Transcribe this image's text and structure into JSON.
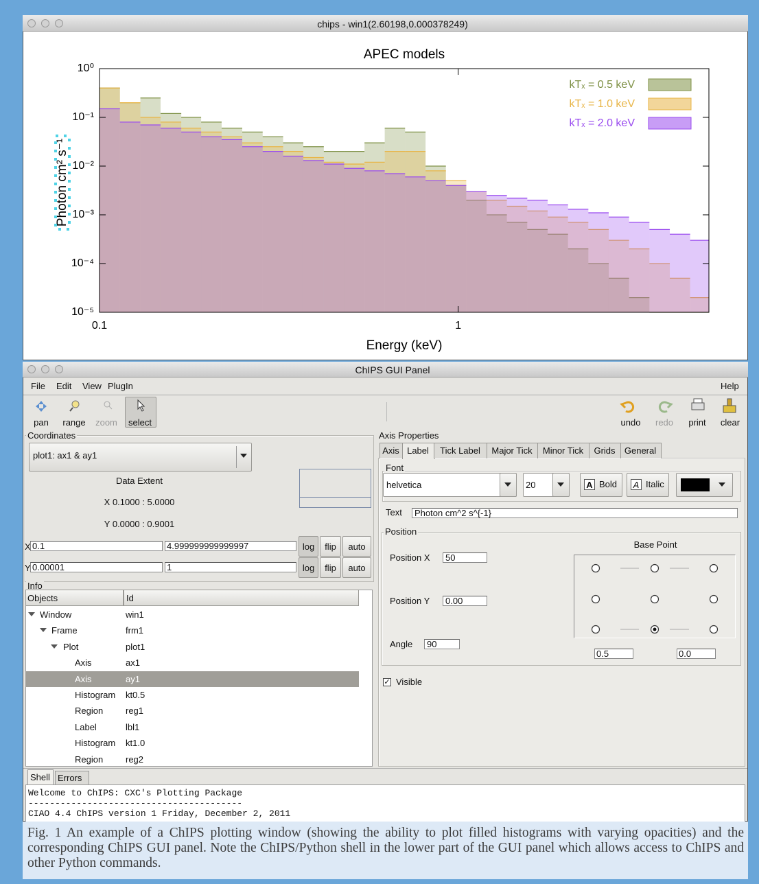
{
  "plot_window": {
    "title": "chips - win1(2.60198,0.000378249)"
  },
  "chart_data": {
    "type": "histogram",
    "title": "APEC models",
    "xlabel": "Energy (keV)",
    "ylabel": "Photon cm² s⁻¹",
    "xscale": "log",
    "yscale": "log",
    "legend": "upper right",
    "bins": [
      0.1,
      0.114,
      0.13,
      0.148,
      0.169,
      0.192,
      0.219,
      0.25,
      0.285,
      0.325,
      0.37,
      0.422,
      0.481,
      0.548,
      0.624,
      0.711,
      0.811,
      0.924,
      1.053,
      1.2,
      1.367,
      1.558,
      1.776,
      2.024,
      2.306,
      2.628,
      2.995,
      3.413,
      3.89,
      4.433,
      5.0
    ],
    "series": [
      {
        "name": "kTₓ = 0.5 keV",
        "color": "#7f9146",
        "values": [
          0.4,
          0.2,
          0.25,
          0.12,
          0.1,
          0.08,
          0.06,
          0.05,
          0.04,
          0.03,
          0.025,
          0.02,
          0.02,
          0.03,
          0.06,
          0.05,
          0.01,
          0.004,
          0.002,
          0.001,
          0.0007,
          0.0005,
          0.0004,
          0.0002,
          0.0001,
          5e-05,
          2e-05,
          1e-05,
          1e-05,
          1e-05
        ]
      },
      {
        "name": "kTₓ = 1.0 keV",
        "color": "#e8b547",
        "values": [
          0.4,
          0.2,
          0.1,
          0.08,
          0.06,
          0.05,
          0.04,
          0.03,
          0.025,
          0.02,
          0.015,
          0.012,
          0.011,
          0.012,
          0.02,
          0.02,
          0.008,
          0.005,
          0.003,
          0.002,
          0.0015,
          0.0012,
          0.0009,
          0.0007,
          0.0005,
          0.0003,
          0.0002,
          0.0001,
          5e-05,
          2e-05
        ]
      },
      {
        "name": "kTₓ = 2.0 keV",
        "color": "#9a4cef",
        "values": [
          0.15,
          0.08,
          0.07,
          0.06,
          0.05,
          0.04,
          0.035,
          0.025,
          0.02,
          0.016,
          0.013,
          0.011,
          0.009,
          0.008,
          0.007,
          0.006,
          0.005,
          0.004,
          0.003,
          0.0025,
          0.0022,
          0.002,
          0.0016,
          0.0013,
          0.0011,
          0.0009,
          0.0007,
          0.0005,
          0.0004,
          0.0003
        ]
      }
    ],
    "xlim": [
      0.1,
      5
    ],
    "xticks": [
      0.1,
      1
    ],
    "ylim": [
      1e-05,
      1
    ],
    "yticks": [
      {
        "value": 1,
        "label": "10⁰"
      },
      {
        "value": 0.1,
        "label": "10⁻¹"
      },
      {
        "value": 0.01,
        "label": "10⁻²"
      },
      {
        "value": 0.001,
        "label": "10⁻³"
      },
      {
        "value": 0.0001,
        "label": "10⁻⁴"
      },
      {
        "value": 1e-05,
        "label": "10⁻⁵"
      }
    ]
  },
  "gui": {
    "title": "ChIPS GUI Panel",
    "menu": [
      "File",
      "Edit",
      "View",
      "PlugIn"
    ],
    "help": "Help",
    "toolbar_left": [
      "pan",
      "range",
      "zoom",
      "select"
    ],
    "toolbar_right": [
      "undo",
      "redo",
      "print",
      "clear"
    ],
    "coordinates": {
      "label": "Coordinates",
      "plot": "plot1: ax1 & ay1",
      "extent_title": "Data Extent",
      "x_extent": "X 0.1000 : 5.0000",
      "y_extent": "Y 0.0000 : 0.9001",
      "rows": [
        {
          "axis": "X",
          "min": "0.1",
          "max": "4.999999999999997"
        },
        {
          "axis": "Y",
          "min": "0.00001",
          "max": "1"
        }
      ],
      "buttons": [
        "log",
        "flip",
        "auto"
      ]
    },
    "info": {
      "label": "Info",
      "columns": [
        "Objects",
        "Id"
      ],
      "rows": [
        [
          "Window",
          "win1"
        ],
        [
          "Frame",
          "frm1"
        ],
        [
          "Plot",
          "plot1"
        ],
        [
          "Axis",
          "ax1"
        ],
        [
          "Axis",
          "ay1"
        ],
        [
          "Histogram",
          "kt0.5"
        ],
        [
          "Region",
          "reg1"
        ],
        [
          "Label",
          "lbl1"
        ],
        [
          "Histogram",
          "kt1.0"
        ],
        [
          "Region",
          "reg2"
        ]
      ]
    },
    "axis_properties": {
      "label": "Axis Properties",
      "tabs": [
        "Axis",
        "Label",
        "Tick Label",
        "Major Tick",
        "Minor Tick",
        "Grids",
        "General"
      ],
      "font": {
        "label": "Font",
        "family": "helvetica",
        "size": "20",
        "bold": "Bold",
        "italic": "Italic"
      },
      "text_label": "Text",
      "text": "Photon cm^2 s^{-1}",
      "position": {
        "label": "Position",
        "x_label": "Position X",
        "x": "50",
        "y_label": "Position Y",
        "y": "0.00",
        "angle_label": "Angle",
        "angle": "90",
        "base_point": "Base Point",
        "base_x": "0.5",
        "base_y": "0.0"
      },
      "visible": "Visible"
    },
    "shell": {
      "tabs": [
        "Shell",
        "Errors"
      ],
      "lines": [
        "Welcome to ChIPS: CXC's Plotting Package",
        "----------------------------------------",
        "CIAO 4.4 ChIPS version 1 Friday, December 2, 2011"
      ]
    }
  },
  "caption": "Fig. 1 An example of a ChIPS plotting window (showing the ability to plot filled histograms with varying opacities)  and the corresponding ChIPS GUI panel. Note the ChIPS/Python shell in the lower part of the GUI panel which allows access to ChIPS and other Python commands."
}
